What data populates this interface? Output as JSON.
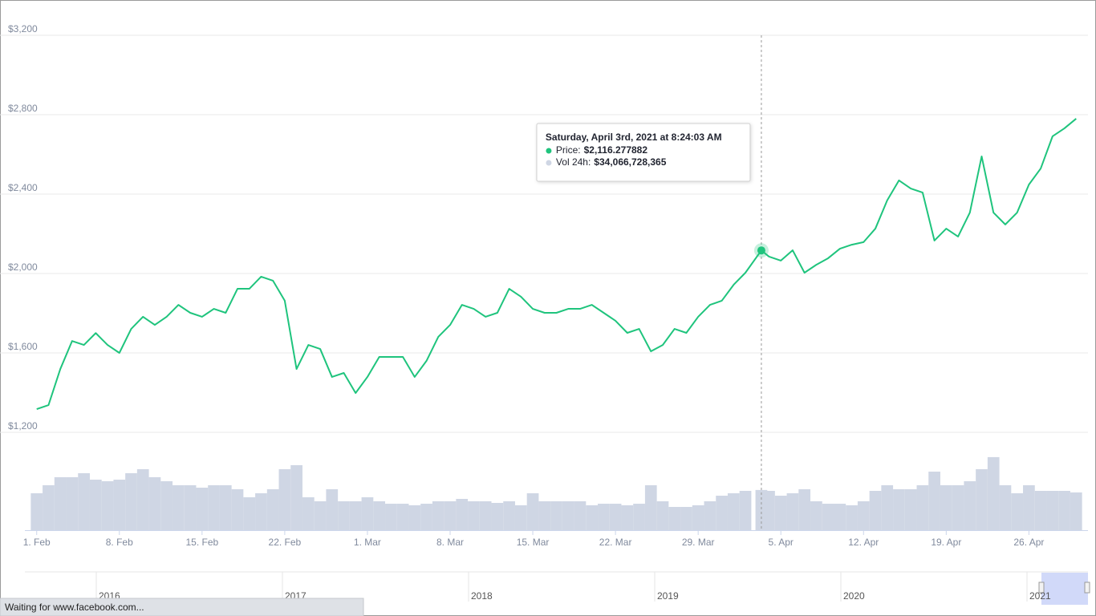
{
  "chart_data": {
    "type": "line",
    "x": [
      "2021-02-01",
      "2021-02-02",
      "2021-02-03",
      "2021-02-04",
      "2021-02-05",
      "2021-02-06",
      "2021-02-07",
      "2021-02-08",
      "2021-02-09",
      "2021-02-10",
      "2021-02-11",
      "2021-02-12",
      "2021-02-13",
      "2021-02-14",
      "2021-02-15",
      "2021-02-16",
      "2021-02-17",
      "2021-02-18",
      "2021-02-19",
      "2021-02-20",
      "2021-02-21",
      "2021-02-22",
      "2021-02-23",
      "2021-02-24",
      "2021-02-25",
      "2021-02-26",
      "2021-02-27",
      "2021-02-28",
      "2021-03-01",
      "2021-03-02",
      "2021-03-03",
      "2021-03-04",
      "2021-03-05",
      "2021-03-06",
      "2021-03-07",
      "2021-03-08",
      "2021-03-09",
      "2021-03-10",
      "2021-03-11",
      "2021-03-12",
      "2021-03-13",
      "2021-03-14",
      "2021-03-15",
      "2021-03-16",
      "2021-03-17",
      "2021-03-18",
      "2021-03-19",
      "2021-03-20",
      "2021-03-21",
      "2021-03-22",
      "2021-03-23",
      "2021-03-24",
      "2021-03-25",
      "2021-03-26",
      "2021-03-27",
      "2021-03-28",
      "2021-03-29",
      "2021-03-30",
      "2021-03-31",
      "2021-04-01",
      "2021-04-02",
      "2021-04-03T08:24:03",
      "2021-04-04",
      "2021-04-05",
      "2021-04-06",
      "2021-04-07",
      "2021-04-08",
      "2021-04-09",
      "2021-04-10",
      "2021-04-11",
      "2021-04-12",
      "2021-04-13",
      "2021-04-14",
      "2021-04-15",
      "2021-04-16",
      "2021-04-17",
      "2021-04-18",
      "2021-04-19",
      "2021-04-20",
      "2021-04-21",
      "2021-04-22",
      "2021-04-23",
      "2021-04-24",
      "2021-04-25",
      "2021-04-26",
      "2021-04-27",
      "2021-04-28",
      "2021-04-29",
      "2021-04-30"
    ],
    "series": [
      {
        "name": "Price:",
        "color": "#1fc47d",
        "values": [
          1317,
          1337,
          1519,
          1660,
          1640,
          1700,
          1640,
          1600,
          1721,
          1782,
          1741,
          1782,
          1842,
          1802,
          1782,
          1822,
          1802,
          1923,
          1923,
          1984,
          1964,
          1863,
          1519,
          1640,
          1620,
          1479,
          1499,
          1398,
          1479,
          1580,
          1580,
          1580,
          1479,
          1560,
          1681,
          1741,
          1842,
          1822,
          1782,
          1802,
          1923,
          1883,
          1822,
          1802,
          1802,
          1822,
          1822,
          1842,
          1802,
          1762,
          1701,
          1721,
          1608,
          1640,
          1721,
          1701,
          1782,
          1842,
          1863,
          1943,
          2004,
          2116.277882,
          2085,
          2065,
          2117,
          2004,
          2044,
          2077,
          2125,
          2145,
          2158,
          2226,
          2368,
          2469,
          2428,
          2408,
          2166,
          2226,
          2186,
          2307,
          2590,
          2307,
          2247,
          2307,
          2448,
          2529,
          2691,
          2731,
          2780
        ]
      },
      {
        "name": "Vol 24h:",
        "type": "bar",
        "axis": "y2",
        "color": "#cfd6e4",
        "values": [
          31300000000,
          38100000000,
          44900000000,
          44900000000,
          48300000000,
          42800000000,
          41500000000,
          42800000000,
          48300000000,
          51700000000,
          44900000000,
          41500000000,
          38100000000,
          38100000000,
          36000000000,
          38100000000,
          38100000000,
          34700000000,
          27900000000,
          31300000000,
          34700000000,
          51700000000,
          55100000000,
          27900000000,
          24500000000,
          34700000000,
          24500000000,
          24500000000,
          27900000000,
          24500000000,
          22400000000,
          22400000000,
          21100000000,
          22400000000,
          24500000000,
          24500000000,
          26500000000,
          24500000000,
          24500000000,
          23100000000,
          24500000000,
          21100000000,
          31300000000,
          24500000000,
          24500000000,
          24500000000,
          24500000000,
          21100000000,
          22400000000,
          22400000000,
          21100000000,
          22400000000,
          38100000000,
          24500000000,
          19700000000,
          19700000000,
          21100000000,
          24500000000,
          29200000000,
          31300000000,
          33300000000,
          34066728365,
          33300000000,
          29200000000,
          31300000000,
          34700000000,
          24500000000,
          22400000000,
          22400000000,
          21100000000,
          24500000000,
          33300000000,
          38100000000,
          34700000000,
          34700000000,
          38100000000,
          49600000000,
          38100000000,
          38100000000,
          41500000000,
          51700000000,
          61900000000,
          38100000000,
          31300000000,
          38100000000,
          33300000000,
          33300000000,
          33300000000,
          32000000000
        ]
      }
    ],
    "xlim": [
      "2021-01-31",
      "2021-05-01"
    ],
    "xticks": [
      {
        "value": "2021-02-01",
        "label": "1. Feb"
      },
      {
        "value": "2021-02-08",
        "label": "8. Feb"
      },
      {
        "value": "2021-02-15",
        "label": "15. Feb"
      },
      {
        "value": "2021-02-22",
        "label": "22. Feb"
      },
      {
        "value": "2021-03-01",
        "label": "1. Mar"
      },
      {
        "value": "2021-03-08",
        "label": "8. Mar"
      },
      {
        "value": "2021-03-15",
        "label": "15. Mar"
      },
      {
        "value": "2021-03-22",
        "label": "22. Mar"
      },
      {
        "value": "2021-03-29",
        "label": "29. Mar"
      },
      {
        "value": "2021-04-05",
        "label": "5. Apr"
      },
      {
        "value": "2021-04-12",
        "label": "12. Apr"
      },
      {
        "value": "2021-04-19",
        "label": "19. Apr"
      },
      {
        "value": "2021-04-26",
        "label": "26. Apr"
      }
    ],
    "ylim": [
      1200,
      3200
    ],
    "yticks": [
      {
        "value": 1200,
        "label": "$1,200"
      },
      {
        "value": 1600,
        "label": "$1,600"
      },
      {
        "value": 2000,
        "label": "$2,000"
      },
      {
        "value": 2400,
        "label": "$2,400"
      },
      {
        "value": 2800,
        "label": "$2,800"
      },
      {
        "value": 3200,
        "label": "$3,200"
      }
    ],
    "y2lim": [
      0,
      70000000000
    ],
    "grid": true,
    "tooltip": {
      "title": "Saturday, April 3rd, 2021 at 8:24:03 AM",
      "x": "2021-04-03T08:24:03",
      "values": [
        "$2,116.277882",
        "$34,066,728,365"
      ]
    },
    "navigator": {
      "labels": [
        "2016",
        "2017",
        "2018",
        "2019",
        "2020",
        "2021"
      ]
    }
  },
  "status_bar": "Waiting for www.facebook.com..."
}
